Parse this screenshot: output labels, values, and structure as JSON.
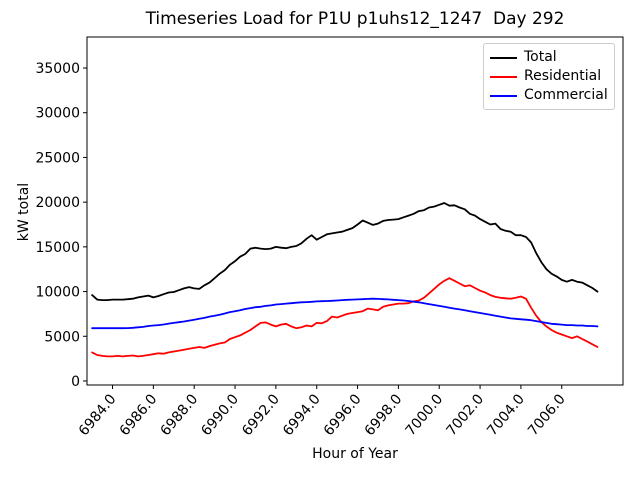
{
  "chart_data": {
    "type": "line",
    "title": "Timeseries Load for P1U p1uhs12_1247  Day 292",
    "xlabel": "Hour of Year",
    "ylabel": "kW total",
    "xlim": [
      6982.75,
      7009.0
    ],
    "ylim": [
      -450,
      38470
    ],
    "grid": false,
    "legend_position": "upper right",
    "x_tick_values": [
      6984,
      6986,
      6988,
      6990,
      6992,
      6994,
      6996,
      6998,
      7000,
      7002,
      7004,
      7006
    ],
    "x_tick_labels": [
      "6984.0",
      "6986.0",
      "6988.0",
      "6990.0",
      "6992.0",
      "6994.0",
      "6996.0",
      "6998.0",
      "7000.0",
      "7002.0",
      "7004.0",
      "7006.0"
    ],
    "y_tick_values": [
      0,
      5000,
      10000,
      15000,
      20000,
      25000,
      30000,
      35000
    ],
    "y_tick_labels": [
      "0",
      "5000",
      "10000",
      "15000",
      "20000",
      "25000",
      "30000",
      "35000"
    ],
    "x": [
      6983.0,
      6983.25,
      6983.5,
      6983.75,
      6984.0,
      6984.25,
      6984.5,
      6984.75,
      6985.0,
      6985.25,
      6985.5,
      6985.75,
      6986.0,
      6986.25,
      6986.5,
      6986.75,
      6987.0,
      6987.25,
      6987.5,
      6987.75,
      6988.0,
      6988.25,
      6988.5,
      6988.75,
      6989.0,
      6989.25,
      6989.5,
      6989.75,
      6990.0,
      6990.25,
      6990.5,
      6990.75,
      6991.0,
      6991.25,
      6991.5,
      6991.75,
      6992.0,
      6992.25,
      6992.5,
      6992.75,
      6993.0,
      6993.25,
      6993.5,
      6993.75,
      6994.0,
      6994.25,
      6994.5,
      6994.75,
      6995.0,
      6995.25,
      6995.5,
      6995.75,
      6996.0,
      6996.25,
      6996.5,
      6996.75,
      6997.0,
      6997.25,
      6997.5,
      6997.75,
      6998.0,
      6998.25,
      6998.5,
      6998.75,
      6999.0,
      6999.25,
      6999.5,
      6999.75,
      7000.0,
      7000.25,
      7000.5,
      7000.75,
      7001.0,
      7001.25,
      7001.5,
      7001.75,
      7002.0,
      7002.25,
      7002.5,
      7002.75,
      7003.0,
      7003.25,
      7003.5,
      7003.75,
      7004.0,
      7004.25,
      7004.5,
      7004.75,
      7005.0,
      7005.25,
      7005.5,
      7005.75,
      7006.0,
      7006.25,
      7006.5,
      7006.75,
      7007.0,
      7007.25,
      7007.5,
      7007.75
    ],
    "series": [
      {
        "name": "Total",
        "color": "#000000",
        "values": [
          9600,
          9100,
          9050,
          9050,
          9100,
          9100,
          9100,
          9150,
          9200,
          9350,
          9450,
          9550,
          9350,
          9500,
          9700,
          9900,
          9950,
          10150,
          10350,
          10500,
          10350,
          10300,
          10700,
          11000,
          11500,
          12000,
          12400,
          13000,
          13400,
          13900,
          14200,
          14800,
          14900,
          14800,
          14750,
          14800,
          15000,
          14900,
          14850,
          15000,
          15100,
          15400,
          15900,
          16300,
          15800,
          16100,
          16400,
          16500,
          16600,
          16700,
          16900,
          17100,
          17500,
          17950,
          17700,
          17450,
          17600,
          17900,
          18000,
          18050,
          18100,
          18300,
          18500,
          18700,
          19000,
          19100,
          19400,
          19500,
          19700,
          19900,
          19600,
          19650,
          19400,
          19200,
          18700,
          18500,
          18100,
          17800,
          17500,
          17600,
          17000,
          16800,
          16700,
          16300,
          16300,
          16100,
          15500,
          14300,
          13300,
          12500,
          12000,
          11700,
          11300,
          11100,
          11300,
          11100,
          11000,
          10700,
          10400,
          10000
        ]
      },
      {
        "name": "Residential",
        "color": "#ff0000",
        "values": [
          3200,
          2900,
          2800,
          2750,
          2750,
          2800,
          2750,
          2800,
          2850,
          2750,
          2800,
          2900,
          3000,
          3100,
          3050,
          3200,
          3300,
          3400,
          3500,
          3600,
          3700,
          3800,
          3700,
          3900,
          4050,
          4200,
          4300,
          4700,
          4900,
          5100,
          5400,
          5700,
          6100,
          6500,
          6550,
          6300,
          6100,
          6300,
          6400,
          6100,
          5900,
          6000,
          6200,
          6100,
          6500,
          6450,
          6700,
          7200,
          7100,
          7300,
          7500,
          7600,
          7700,
          7800,
          8100,
          8000,
          7900,
          8300,
          8450,
          8550,
          8650,
          8650,
          8700,
          8900,
          9000,
          9300,
          9800,
          10300,
          10800,
          11200,
          11500,
          11200,
          10900,
          10600,
          10700,
          10400,
          10100,
          9900,
          9600,
          9400,
          9300,
          9250,
          9200,
          9300,
          9450,
          9200,
          8200,
          7300,
          6600,
          6100,
          5700,
          5400,
          5200,
          5000,
          4800,
          5000,
          4700,
          4400,
          4100,
          3800
        ]
      },
      {
        "name": "Commercial",
        "color": "#0000ff",
        "values": [
          5900,
          5900,
          5900,
          5900,
          5900,
          5900,
          5900,
          5910,
          5950,
          6000,
          6050,
          6150,
          6200,
          6250,
          6320,
          6420,
          6500,
          6570,
          6650,
          6750,
          6850,
          6950,
          7050,
          7200,
          7300,
          7400,
          7550,
          7700,
          7800,
          7900,
          8050,
          8150,
          8250,
          8300,
          8400,
          8450,
          8550,
          8600,
          8650,
          8700,
          8750,
          8800,
          8820,
          8850,
          8900,
          8920,
          8950,
          8970,
          9000,
          9050,
          9080,
          9100,
          9120,
          9150,
          9180,
          9200,
          9180,
          9150,
          9120,
          9080,
          9050,
          9000,
          8950,
          8870,
          8800,
          8700,
          8600,
          8500,
          8400,
          8300,
          8200,
          8100,
          8000,
          7900,
          7800,
          7700,
          7600,
          7500,
          7400,
          7300,
          7200,
          7100,
          7000,
          6950,
          6900,
          6850,
          6800,
          6700,
          6600,
          6500,
          6400,
          6350,
          6300,
          6250,
          6250,
          6200,
          6200,
          6150,
          6150,
          6100
        ]
      }
    ]
  }
}
